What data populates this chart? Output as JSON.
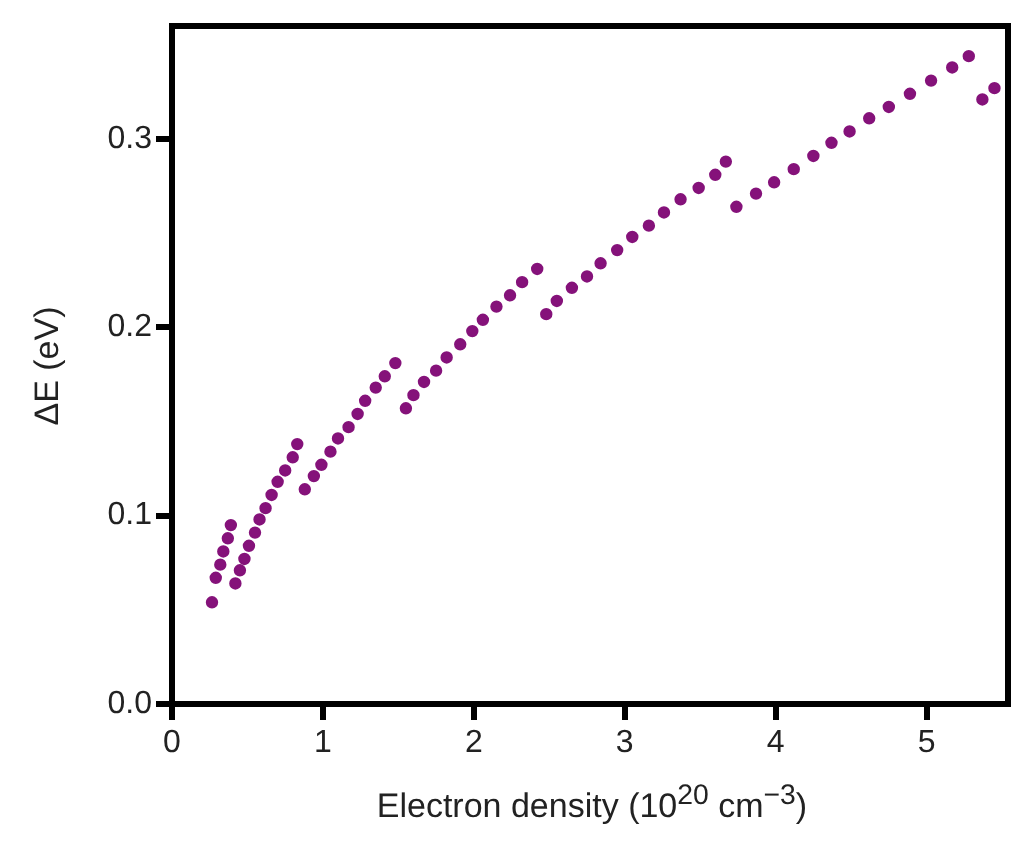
{
  "chart_data": {
    "type": "scatter",
    "xlabel": "Electron density (10$^{20}$ cm$^{−3}$)",
    "ylabel": "ΔE (eV)",
    "x": [
      0.265,
      0.29,
      0.32,
      0.34,
      0.37,
      0.39,
      0.42,
      0.45,
      0.48,
      0.51,
      0.55,
      0.58,
      0.62,
      0.66,
      0.7,
      0.75,
      0.8,
      0.83,
      0.88,
      0.94,
      0.99,
      1.05,
      1.1,
      1.17,
      1.23,
      1.28,
      1.35,
      1.41,
      1.48,
      1.55,
      1.6,
      1.67,
      1.75,
      1.82,
      1.91,
      1.99,
      2.06,
      2.15,
      2.24,
      2.32,
      2.42,
      2.48,
      2.55,
      2.65,
      2.75,
      2.84,
      2.95,
      3.05,
      3.16,
      3.26,
      3.37,
      3.49,
      3.6,
      3.67,
      3.74,
      3.87,
      3.99,
      4.12,
      4.25,
      4.37,
      4.49,
      4.62,
      4.75,
      4.89,
      5.03,
      5.17,
      5.28,
      5.37,
      5.45
    ],
    "series": [
      {
        "color": "#85127a",
        "values": [
          0.054,
          0.067,
          0.074,
          0.081,
          0.088,
          0.095,
          0.064,
          0.071,
          0.077,
          0.084,
          0.091,
          0.098,
          0.104,
          0.111,
          0.118,
          0.124,
          0.131,
          0.138,
          0.114,
          0.121,
          0.127,
          0.134,
          0.141,
          0.147,
          0.154,
          0.161,
          0.168,
          0.174,
          0.181,
          0.157,
          0.164,
          0.171,
          0.177,
          0.184,
          0.191,
          0.198,
          0.204,
          0.211,
          0.217,
          0.224,
          0.231,
          0.207,
          0.214,
          0.221,
          0.227,
          0.234,
          0.241,
          0.248,
          0.254,
          0.261,
          0.268,
          0.274,
          0.281,
          0.288,
          0.264,
          0.271,
          0.277,
          0.284,
          0.291,
          0.298,
          0.304,
          0.311,
          0.317,
          0.324,
          0.331,
          0.338,
          0.344,
          0.321,
          0.327
        ]
      }
    ],
    "xlim": [
      0,
      5.5
    ],
    "xticks": [
      0,
      1,
      2,
      3,
      4,
      5
    ],
    "ylim": [
      0,
      0.36
    ],
    "yticks": [
      {
        "value": 0,
        "label": "0.0"
      },
      {
        "value": 0.1,
        "label": "0.1"
      },
      {
        "value": 0.2,
        "label": "0.2"
      },
      {
        "value": 0.3,
        "label": "0.3"
      }
    ],
    "grid": false,
    "legend": false,
    "marker": "circle"
  }
}
